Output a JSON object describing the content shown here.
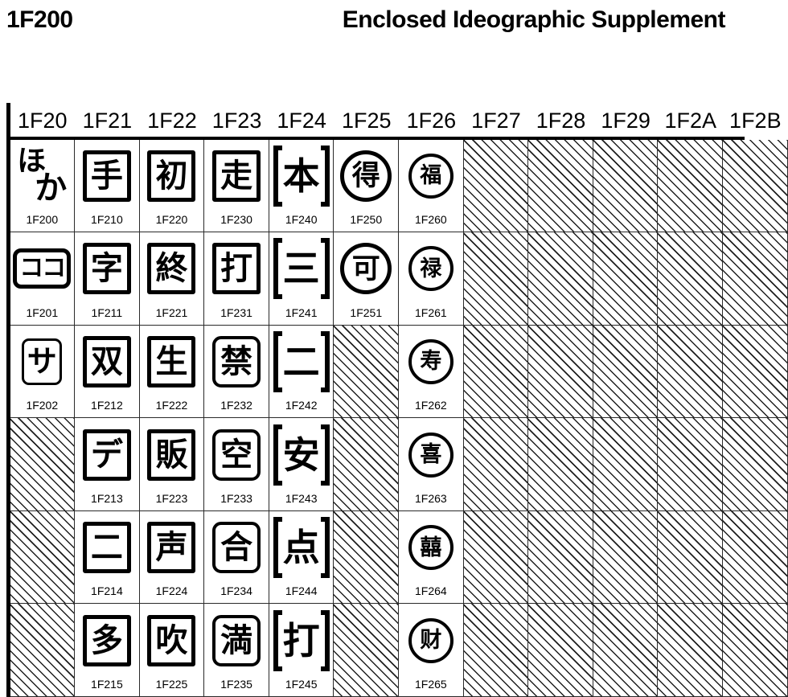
{
  "page": {
    "block_code": "1F200",
    "title": "Enclosed Ideographic Supplement"
  },
  "colors": {
    "ink": "#000000",
    "grid_line": "#2a2a2a",
    "hatch_line": "#1f1f1f",
    "background": "#ffffff"
  },
  "chart": {
    "column_headers": [
      "1F20",
      "1F21",
      "1F22",
      "1F23",
      "1F24",
      "1F25",
      "1F26",
      "1F27",
      "1F28",
      "1F29",
      "1F2A",
      "1F2B"
    ],
    "rows": [
      [
        {
          "code": "1F200",
          "glyph": "ほか",
          "enclosure": "diagonal"
        },
        {
          "code": "1F210",
          "glyph": "手",
          "enclosure": "square"
        },
        {
          "code": "1F220",
          "glyph": "初",
          "enclosure": "square"
        },
        {
          "code": "1F230",
          "glyph": "走",
          "enclosure": "square"
        },
        {
          "code": "1F240",
          "glyph": "本",
          "enclosure": "brackets"
        },
        {
          "code": "1F250",
          "glyph": "得",
          "enclosure": "circle"
        },
        {
          "code": "1F260",
          "glyph": "福",
          "enclosure": "emblem"
        },
        {
          "reserved": true
        },
        {
          "reserved": true
        },
        {
          "reserved": true
        },
        {
          "reserved": true
        },
        {
          "reserved": true
        }
      ],
      [
        {
          "code": "1F201",
          "glyph": "ココ",
          "enclosure": "wide-rounded"
        },
        {
          "code": "1F211",
          "glyph": "字",
          "enclosure": "square"
        },
        {
          "code": "1F221",
          "glyph": "終",
          "enclosure": "square"
        },
        {
          "code": "1F231",
          "glyph": "打",
          "enclosure": "square"
        },
        {
          "code": "1F241",
          "glyph": "三",
          "enclosure": "brackets"
        },
        {
          "code": "1F251",
          "glyph": "可",
          "enclosure": "circle"
        },
        {
          "code": "1F261",
          "glyph": "禄",
          "enclosure": "emblem"
        },
        {
          "reserved": true
        },
        {
          "reserved": true
        },
        {
          "reserved": true
        },
        {
          "reserved": true
        },
        {
          "reserved": true
        }
      ],
      [
        {
          "code": "1F202",
          "glyph": "サ",
          "enclosure": "rounded-thin"
        },
        {
          "code": "1F212",
          "glyph": "双",
          "enclosure": "square"
        },
        {
          "code": "1F222",
          "glyph": "生",
          "enclosure": "square"
        },
        {
          "code": "1F232",
          "glyph": "禁",
          "enclosure": "rounded"
        },
        {
          "code": "1F242",
          "glyph": "二",
          "enclosure": "brackets"
        },
        {
          "reserved": true
        },
        {
          "code": "1F262",
          "glyph": "寿",
          "enclosure": "emblem"
        },
        {
          "reserved": true
        },
        {
          "reserved": true
        },
        {
          "reserved": true
        },
        {
          "reserved": true
        },
        {
          "reserved": true
        }
      ],
      [
        {
          "reserved": true
        },
        {
          "code": "1F213",
          "glyph": "デ",
          "enclosure": "square"
        },
        {
          "code": "1F223",
          "glyph": "販",
          "enclosure": "square"
        },
        {
          "code": "1F233",
          "glyph": "空",
          "enclosure": "rounded"
        },
        {
          "code": "1F243",
          "glyph": "安",
          "enclosure": "brackets"
        },
        {
          "reserved": true
        },
        {
          "code": "1F263",
          "glyph": "喜",
          "enclosure": "emblem"
        },
        {
          "reserved": true
        },
        {
          "reserved": true
        },
        {
          "reserved": true
        },
        {
          "reserved": true
        },
        {
          "reserved": true
        }
      ],
      [
        {
          "reserved": true
        },
        {
          "code": "1F214",
          "glyph": "二",
          "enclosure": "square"
        },
        {
          "code": "1F224",
          "glyph": "声",
          "enclosure": "square"
        },
        {
          "code": "1F234",
          "glyph": "合",
          "enclosure": "rounded"
        },
        {
          "code": "1F244",
          "glyph": "点",
          "enclosure": "brackets"
        },
        {
          "reserved": true
        },
        {
          "code": "1F264",
          "glyph": "囍",
          "enclosure": "emblem"
        },
        {
          "reserved": true
        },
        {
          "reserved": true
        },
        {
          "reserved": true
        },
        {
          "reserved": true
        },
        {
          "reserved": true
        }
      ],
      [
        {
          "reserved": true
        },
        {
          "code": "1F215",
          "glyph": "多",
          "enclosure": "square"
        },
        {
          "code": "1F225",
          "glyph": "吹",
          "enclosure": "square"
        },
        {
          "code": "1F235",
          "glyph": "満",
          "enclosure": "rounded"
        },
        {
          "code": "1F245",
          "glyph": "打",
          "enclosure": "brackets"
        },
        {
          "reserved": true
        },
        {
          "code": "1F265",
          "glyph": "财",
          "enclosure": "emblem"
        },
        {
          "reserved": true
        },
        {
          "reserved": true
        },
        {
          "reserved": true
        },
        {
          "reserved": true
        },
        {
          "reserved": true
        }
      ]
    ]
  }
}
